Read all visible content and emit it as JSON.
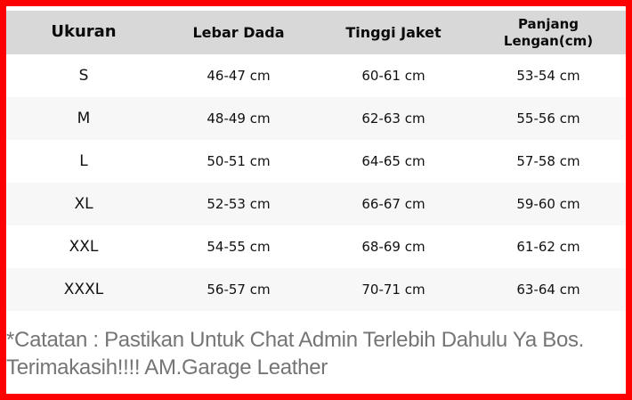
{
  "accent_colors": {
    "frame_red": "#fe0000",
    "header_gray": "#d8d8d8",
    "alt_row_gray": "#f7f7f7",
    "note_gray": "#757575"
  },
  "table": {
    "headers": [
      "Ukuran",
      "Lebar Dada",
      "Tinggi Jaket",
      "Panjang\nLengan(cm)"
    ],
    "rows": [
      {
        "size": "S",
        "chest": "46-47 cm",
        "jacket_height": "60-61 cm",
        "sleeve": "53-54 cm"
      },
      {
        "size": "M",
        "chest": "48-49 cm",
        "jacket_height": "62-63 cm",
        "sleeve": "55-56 cm"
      },
      {
        "size": "L",
        "chest": "50-51 cm",
        "jacket_height": "64-65 cm",
        "sleeve": "57-58 cm"
      },
      {
        "size": "XL",
        "chest": "52-53 cm",
        "jacket_height": "66-67 cm",
        "sleeve": "59-60 cm"
      },
      {
        "size": "XXL",
        "chest": "54-55 cm",
        "jacket_height": "68-69 cm",
        "sleeve": "61-62 cm"
      },
      {
        "size": "XXXL",
        "chest": "56-57 cm",
        "jacket_height": "70-71 cm",
        "sleeve": "63-64 cm"
      }
    ]
  },
  "note": {
    "text": "*Catatan : Pastikan Untuk Chat Admin Terlebih Dahulu Ya Bos.\nTerimakasih!!!! AM.Garage Leather"
  }
}
